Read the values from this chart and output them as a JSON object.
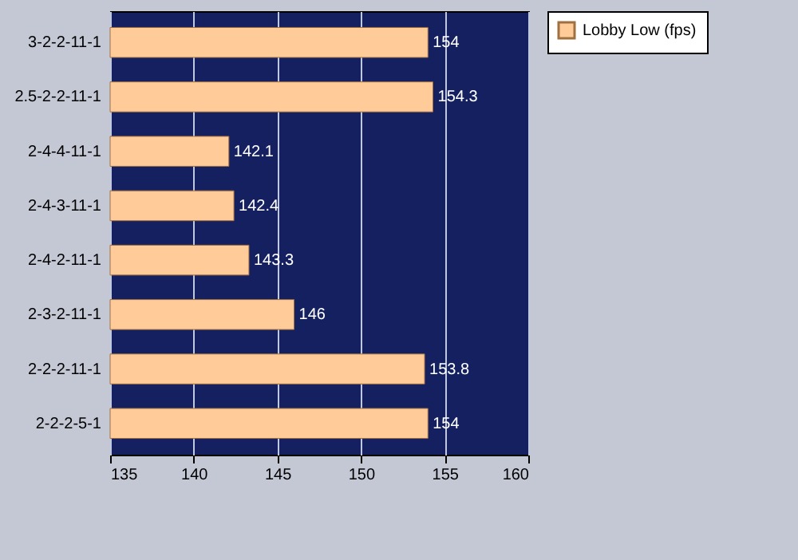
{
  "chart_data": {
    "type": "bar",
    "orientation": "horizontal",
    "categories": [
      "3-2-2-11-1",
      "2.5-2-2-11-1",
      "2-4-4-11-1",
      "2-4-3-11-1",
      "2-4-2-11-1",
      "2-3-2-11-1",
      "2-2-2-11-1",
      "2-2-2-5-1"
    ],
    "series": [
      {
        "name": "Lobby Low (fps)",
        "color": "#ffcc99",
        "values": [
          154,
          154.3,
          142.1,
          142.4,
          143.3,
          146,
          153.8,
          154
        ]
      }
    ],
    "xlim": [
      135,
      160
    ],
    "xticks": [
      135,
      140,
      145,
      150,
      155,
      160
    ],
    "grid": "x",
    "legend": "right",
    "data_labels": true
  }
}
